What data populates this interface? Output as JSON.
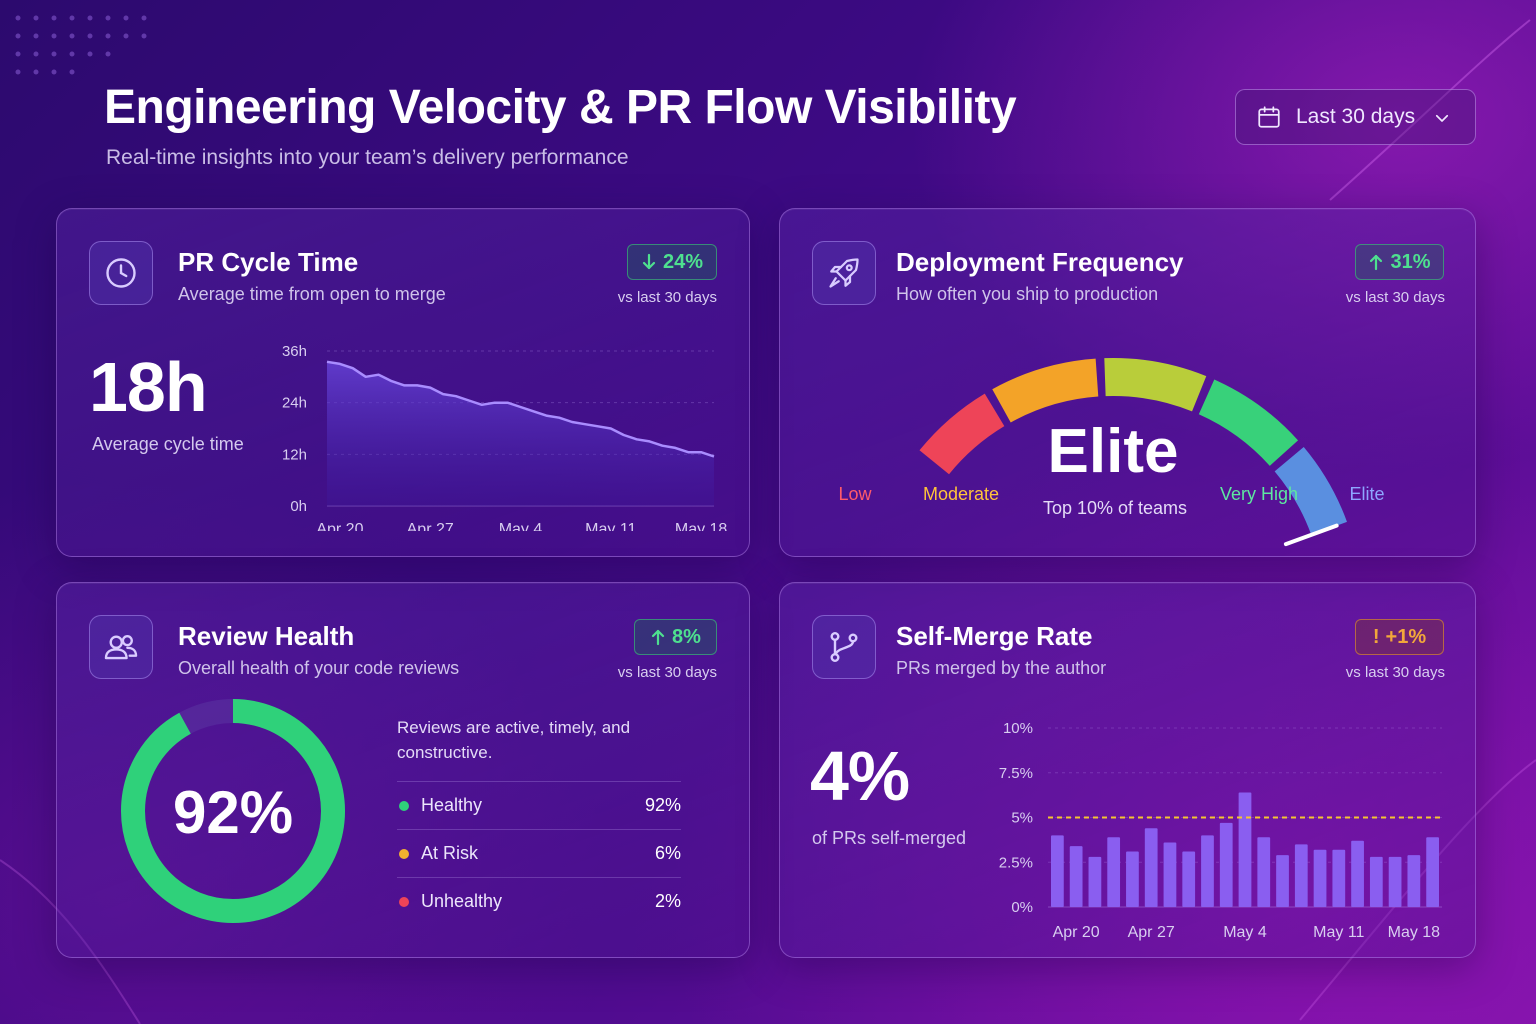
{
  "header": {
    "title": "Engineering Velocity & PR Flow Visibility",
    "subtitle": "Real-time insights into your team’s delivery performance"
  },
  "date_filter": {
    "label": "Last 30 days",
    "icon": "calendar-icon"
  },
  "cards": {
    "pr_cycle": {
      "icon": "clock-icon",
      "title": "PR Cycle Time",
      "subtitle": "Average time from open to merge",
      "badge": {
        "text": "24%",
        "direction": "down",
        "color": "#4ee08f"
      },
      "badge_caption": "vs last 30 days",
      "metric": "18h",
      "metric_caption": "Average cycle time"
    },
    "deploy": {
      "icon": "rocket-icon",
      "title": "Deployment Frequency",
      "subtitle": "How often you ship to production",
      "badge": {
        "text": "31%",
        "direction": "up",
        "color": "#4ee08f"
      },
      "badge_caption": "vs last 30 days",
      "rating": "Elite",
      "rating_caption": "Top 10% of teams"
    },
    "review": {
      "icon": "users-icon",
      "title": "Review Health",
      "subtitle": "Overall health of your code reviews",
      "badge": {
        "text": "8%",
        "direction": "up",
        "color": "#4ee08f"
      },
      "badge_caption": "vs last 30 days",
      "description": "Reviews are active, timely, and constructive.",
      "donut_label": "92%",
      "breakdown": [
        {
          "label": "Healthy",
          "value": "92%",
          "color": "#2fd17a"
        },
        {
          "label": "At Risk",
          "value": "6%",
          "color": "#f2b130"
        },
        {
          "label": "Unhealthy",
          "value": "2%",
          "color": "#ee4458"
        }
      ]
    },
    "self_merge": {
      "icon": "git-branch-icon",
      "title": "Self-Merge Rate",
      "subtitle": "PRs merged by the author",
      "badge": {
        "text": "+1%",
        "prefix": "!",
        "color": "#f2a73a"
      },
      "badge_caption": "vs last 30 days",
      "metric": "4%",
      "metric_caption": "of PRs self-merged"
    }
  },
  "chart_data": [
    {
      "type": "area",
      "chart": "pr-cycle-time",
      "ylim": [
        0,
        36
      ],
      "y_ticks": [
        "0h",
        "12h",
        "24h",
        "36h"
      ],
      "x_ticks": [
        "Apr 20",
        "Apr 27",
        "May 4",
        "May 11",
        "May 18"
      ],
      "x": [
        "Apr 19",
        "Apr 20",
        "Apr 21",
        "Apr 22",
        "Apr 23",
        "Apr 24",
        "Apr 25",
        "Apr 26",
        "Apr 27",
        "Apr 28",
        "Apr 29",
        "Apr 30",
        "May 1",
        "May 2",
        "May 3",
        "May 4",
        "May 5",
        "May 6",
        "May 7",
        "May 8",
        "May 9",
        "May 10",
        "May 11",
        "May 12",
        "May 13",
        "May 14",
        "May 15",
        "May 16",
        "May 17",
        "May 18",
        "May 19"
      ],
      "values": [
        33.5,
        33,
        32,
        30,
        30.5,
        29,
        28,
        28,
        27.5,
        26,
        25.5,
        24.5,
        23.5,
        24,
        24,
        23,
        22,
        21,
        20.5,
        19.5,
        19,
        18.5,
        18,
        16.5,
        15.5,
        15,
        14,
        13.5,
        12.5,
        12.5,
        11.5
      ],
      "color": "#a98cff"
    },
    {
      "type": "gauge",
      "chart": "deployment-frequency",
      "segments": [
        {
          "label": "Low",
          "color": "#ee4458"
        },
        {
          "label": "Moderate",
          "color": "#f3a328"
        },
        {
          "label": "",
          "color": "#b9cd3a"
        },
        {
          "label": "Very High",
          "color": "#38d17a"
        },
        {
          "label": "Elite",
          "color": "#5a8fe0"
        }
      ],
      "label_colors": [
        "#ff5a6a",
        "#ffc43a",
        "#5ee8a0",
        "#8ea6ff"
      ],
      "value": "Elite"
    },
    {
      "type": "pie",
      "chart": "review-health",
      "values": [
        92,
        6,
        2
      ],
      "labels": [
        "Healthy",
        "At Risk",
        "Unhealthy"
      ],
      "colors": [
        "#2fd17a",
        "#f2b130",
        "#ee4458"
      ]
    },
    {
      "type": "bar",
      "chart": "self-merge-rate",
      "ylim": [
        0,
        10
      ],
      "y_ticks": [
        "0%",
        "2.5%",
        "5%",
        "7.5%",
        "10%"
      ],
      "x_ticks": [
        "Apr 20",
        "Apr 27",
        "May 4",
        "May 11",
        "May 18"
      ],
      "values": [
        4.0,
        3.4,
        2.8,
        3.9,
        3.1,
        4.4,
        3.6,
        3.1,
        4.0,
        4.7,
        6.4,
        3.9,
        2.9,
        3.5,
        3.2,
        3.2,
        3.7,
        2.8,
        2.8,
        2.9,
        3.9
      ],
      "threshold": 5,
      "bar_color": "#8a5ef0",
      "threshold_color": "#f5c530"
    }
  ]
}
